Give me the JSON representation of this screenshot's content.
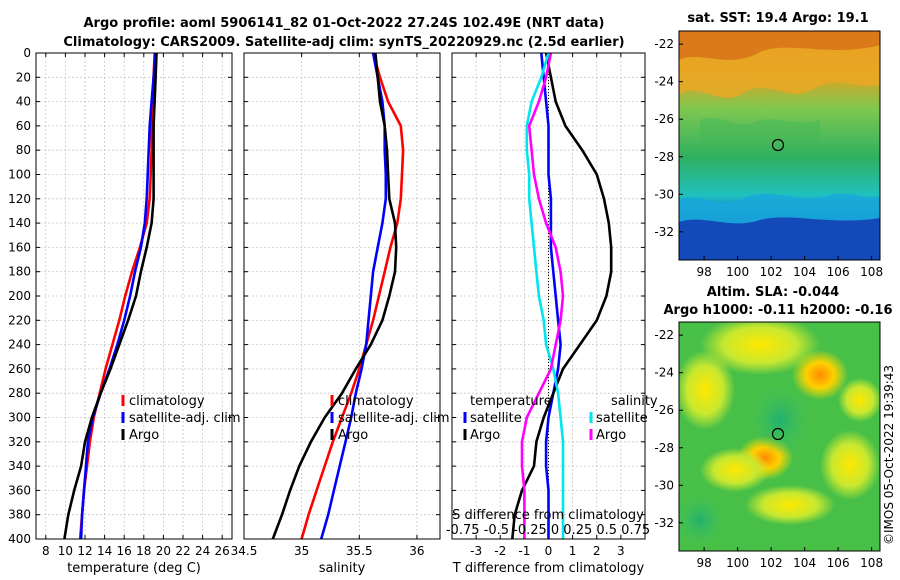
{
  "figure": {
    "title_line1": "Argo profile: aoml 5906141_82 01-Oct-2022 27.24S 102.49E (NRT data)",
    "title_line2": "Climatology: CARS2009. Satellite-adj clim: synTS_20220929.nc (2.5d earlier)",
    "sst_title": "sat. SST: 19.4 Argo: 19.1",
    "sla_title1": "Altim. SLA: -0.044",
    "sla_title2": "Argo h1000: -0.11 h2000: -0.16",
    "watermark": "©IMOS 05-Oct-2022 19:39:43",
    "diff_note_line1": "S difference from climatology",
    "diff_note_line2": "-0.75 -0.5 -0.25 0 0.25 0.5 0.75"
  },
  "colors": {
    "climatology": "#ff0000",
    "satellite": "#0000ff",
    "argo": "#000000",
    "salinity_sat": "#00e5ee",
    "salinity_argo": "#ff00ff",
    "grid": "#c8c8c8"
  },
  "chart_data": [
    {
      "type": "line",
      "id": "temperature",
      "xlabel": "temperature (deg C)",
      "ylabel": "",
      "xlim": [
        7,
        27
      ],
      "ylim": [
        0,
        400
      ],
      "y_reversed": true,
      "x_ticks": [
        "8",
        "10",
        "12",
        "14",
        "16",
        "18",
        "20",
        "22",
        "24",
        "26"
      ],
      "y_ticks": [
        "0",
        "20",
        "40",
        "60",
        "80",
        "100",
        "120",
        "140",
        "160",
        "180",
        "200",
        "220",
        "240",
        "260",
        "280",
        "300",
        "320",
        "340",
        "360",
        "380",
        "400"
      ],
      "legend": [
        "climatology",
        "satellite-adj. clim",
        "Argo"
      ],
      "legend_position": "lower-right",
      "series": [
        {
          "name": "climatology",
          "color": "#ff0000",
          "depth": [
            0,
            20,
            40,
            60,
            80,
            100,
            120,
            140,
            160,
            180,
            200,
            220,
            240,
            260,
            280,
            300,
            320,
            340,
            360,
            380,
            400
          ],
          "values": [
            19.1,
            19.0,
            18.9,
            18.8,
            18.8,
            18.7,
            18.6,
            18.3,
            17.6,
            16.8,
            16.1,
            15.5,
            14.8,
            14.1,
            13.5,
            12.9,
            12.5,
            12.2,
            11.9,
            11.7,
            11.5
          ]
        },
        {
          "name": "satellite-adj. clim",
          "color": "#0000ff",
          "depth": [
            0,
            20,
            40,
            60,
            80,
            100,
            120,
            140,
            160,
            180,
            200,
            220,
            240,
            260,
            280,
            300,
            320,
            340,
            360,
            380,
            400
          ],
          "values": [
            19.2,
            19.0,
            18.8,
            18.6,
            18.5,
            18.4,
            18.3,
            18.1,
            17.7,
            17.1,
            16.6,
            16.0,
            15.3,
            14.5,
            13.6,
            12.8,
            12.3,
            12.1,
            11.9,
            11.7,
            11.6
          ]
        },
        {
          "name": "Argo",
          "color": "#000000",
          "depth": [
            0,
            20,
            40,
            60,
            80,
            100,
            120,
            140,
            160,
            180,
            200,
            220,
            240,
            260,
            280,
            300,
            320,
            340,
            360,
            380,
            400
          ],
          "values": [
            19.3,
            19.2,
            19.1,
            19.0,
            19.0,
            19.0,
            19.0,
            18.8,
            18.3,
            17.7,
            17.2,
            16.4,
            15.5,
            14.6,
            13.6,
            12.7,
            12.0,
            11.6,
            10.9,
            10.3,
            9.9
          ]
        }
      ]
    },
    {
      "type": "line",
      "id": "salinity",
      "xlabel": "salinity",
      "ylabel": "",
      "xlim": [
        34.5,
        36.2
      ],
      "ylim": [
        0,
        400
      ],
      "y_reversed": true,
      "x_ticks": [
        "34.5",
        "35",
        "35.5",
        "36"
      ],
      "legend": [
        "climatology",
        "satellite-adj. clim",
        "Argo"
      ],
      "legend_position": "lower-right",
      "series": [
        {
          "name": "climatology",
          "color": "#ff0000",
          "depth": [
            0,
            20,
            40,
            60,
            80,
            100,
            120,
            140,
            160,
            180,
            200,
            220,
            240,
            260,
            280,
            300,
            320,
            340,
            360,
            380,
            400
          ],
          "values": [
            35.62,
            35.68,
            35.75,
            35.86,
            35.88,
            35.87,
            35.86,
            35.83,
            35.77,
            35.72,
            35.67,
            35.62,
            35.56,
            35.5,
            35.43,
            35.35,
            35.27,
            35.2,
            35.13,
            35.06,
            35.0
          ]
        },
        {
          "name": "satellite-adj. clim",
          "color": "#0000ff",
          "depth": [
            0,
            20,
            40,
            60,
            80,
            100,
            120,
            140,
            160,
            180,
            200,
            220,
            240,
            260,
            280,
            300,
            320,
            340,
            360,
            380,
            400
          ],
          "values": [
            35.62,
            35.66,
            35.7,
            35.72,
            35.72,
            35.73,
            35.73,
            35.7,
            35.66,
            35.62,
            35.6,
            35.58,
            35.56,
            35.52,
            35.47,
            35.43,
            35.38,
            35.33,
            35.28,
            35.23,
            35.17
          ]
        },
        {
          "name": "Argo",
          "color": "#000000",
          "depth": [
            0,
            20,
            40,
            60,
            80,
            100,
            120,
            140,
            160,
            180,
            200,
            220,
            240,
            260,
            280,
            300,
            320,
            340,
            360,
            380,
            400
          ],
          "values": [
            35.64,
            35.66,
            35.68,
            35.72,
            35.74,
            35.75,
            35.76,
            35.81,
            35.82,
            35.81,
            35.76,
            35.7,
            35.6,
            35.47,
            35.35,
            35.2,
            35.08,
            34.98,
            34.9,
            34.83,
            34.75
          ]
        }
      ]
    },
    {
      "type": "line",
      "id": "differences",
      "xlabel": "T difference from climatology",
      "ylabel": "",
      "xlim": [
        -4,
        4
      ],
      "ylim": [
        0,
        400
      ],
      "y_reversed": true,
      "x_ticks": [
        "-3",
        "-2",
        "-1",
        "0",
        "1",
        "2",
        "3"
      ],
      "legend_left_title": "temperature",
      "legend_right_title": "salinity",
      "legend_left": [
        "satellite",
        "Argo"
      ],
      "legend_right": [
        "satellite",
        "Argo"
      ],
      "legend_position": "lower",
      "series": [
        {
          "name": "temperature satellite",
          "color": "#0000ff",
          "depth": [
            0,
            20,
            40,
            60,
            80,
            100,
            120,
            140,
            160,
            180,
            200,
            220,
            240,
            260,
            280,
            300,
            320,
            340,
            360,
            380,
            400
          ],
          "values": [
            -0.3,
            -0.2,
            -0.1,
            0.0,
            0.0,
            0.0,
            0.1,
            0.1,
            0.1,
            0.2,
            0.3,
            0.4,
            0.5,
            0.4,
            0.2,
            0.0,
            -0.1,
            -0.1,
            0.0,
            0.0,
            0.0
          ]
        },
        {
          "name": "temperature Argo",
          "color": "#000000",
          "depth": [
            0,
            20,
            40,
            60,
            80,
            100,
            120,
            140,
            160,
            180,
            200,
            220,
            240,
            260,
            280,
            300,
            320,
            340,
            360,
            380,
            400
          ],
          "values": [
            -0.1,
            0.1,
            0.3,
            0.7,
            1.4,
            2.0,
            2.3,
            2.5,
            2.6,
            2.6,
            2.4,
            2.0,
            1.3,
            0.6,
            0.2,
            -0.2,
            -0.5,
            -0.6,
            -1.1,
            -1.4,
            -1.5
          ]
        },
        {
          "name": "salinity satellite",
          "color": "#00e5ee",
          "depth": [
            0,
            20,
            40,
            60,
            80,
            100,
            120,
            140,
            160,
            180,
            200,
            220,
            240,
            260,
            280,
            300,
            320,
            340,
            360,
            380,
            400
          ],
          "values": [
            0.0,
            -0.3,
            -0.7,
            -0.9,
            -0.9,
            -0.8,
            -0.8,
            -0.7,
            -0.6,
            -0.5,
            -0.4,
            -0.2,
            -0.1,
            0.2,
            0.4,
            0.5,
            0.6,
            0.6,
            0.6,
            0.6,
            0.6
          ]
        },
        {
          "name": "salinity Argo",
          "color": "#ff00ff",
          "depth": [
            0,
            20,
            40,
            60,
            80,
            100,
            120,
            140,
            160,
            180,
            200,
            220,
            240,
            260,
            280,
            300,
            320,
            340,
            360,
            380,
            400
          ],
          "values": [
            0.1,
            -0.1,
            -0.4,
            -0.8,
            -0.7,
            -0.6,
            -0.4,
            -0.1,
            0.3,
            0.5,
            0.6,
            0.5,
            0.3,
            0.1,
            -0.4,
            -0.9,
            -1.1,
            -1.1,
            -1.0,
            -1.0,
            -1.0
          ]
        }
      ]
    },
    {
      "type": "heatmap",
      "id": "sst_map",
      "title": "sat. SST: 19.4 Argo: 19.1",
      "xlim": [
        96.5,
        108.5
      ],
      "ylim": [
        -33.5,
        -21.3
      ],
      "x_ticks": [
        "98",
        "100",
        "102",
        "104",
        "106",
        "108"
      ],
      "y_ticks": [
        "-22",
        "-24",
        "-26",
        "-28",
        "-30",
        "-32"
      ],
      "marker": {
        "lon": 102.49,
        "lat": -27.24
      }
    },
    {
      "type": "heatmap",
      "id": "sla_map",
      "title": "Altim. SLA: -0.044",
      "xlim": [
        96.5,
        108.5
      ],
      "ylim": [
        -33.5,
        -21.3
      ],
      "x_ticks": [
        "98",
        "100",
        "102",
        "104",
        "106",
        "108"
      ],
      "y_ticks": [
        "-22",
        "-24",
        "-26",
        "-28",
        "-30",
        "-32"
      ],
      "marker": {
        "lon": 102.49,
        "lat": -27.24
      }
    }
  ]
}
